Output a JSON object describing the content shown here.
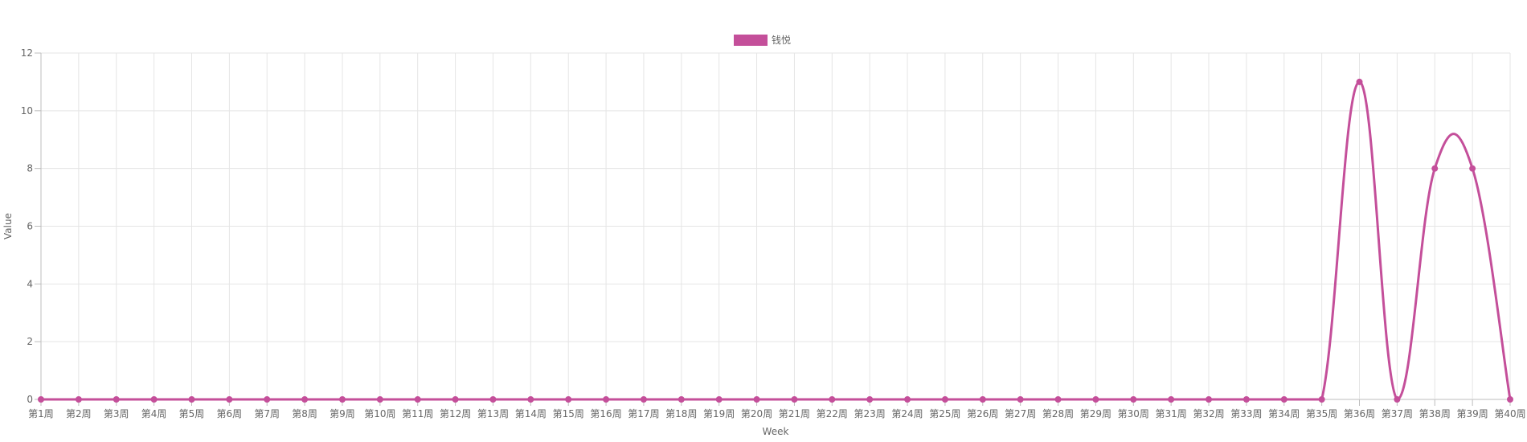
{
  "chart_data": {
    "type": "line",
    "categories": [
      "第1周",
      "第2周",
      "第3周",
      "第4周",
      "第5周",
      "第6周",
      "第7周",
      "第8周",
      "第9周",
      "第10周",
      "第11周",
      "第12周",
      "第13周",
      "第14周",
      "第15周",
      "第16周",
      "第17周",
      "第18周",
      "第19周",
      "第20周",
      "第21周",
      "第22周",
      "第23周",
      "第24周",
      "第25周",
      "第26周",
      "第27周",
      "第28周",
      "第29周",
      "第30周",
      "第31周",
      "第32周",
      "第33周",
      "第34周",
      "第35周",
      "第36周",
      "第37周",
      "第38周",
      "第39周",
      "第40周"
    ],
    "series": [
      {
        "name": "钱悦",
        "color": "#c44f9a",
        "values": [
          0,
          0,
          0,
          0,
          0,
          0,
          0,
          0,
          0,
          0,
          0,
          0,
          0,
          0,
          0,
          0,
          0,
          0,
          0,
          0,
          0,
          0,
          0,
          0,
          0,
          0,
          0,
          0,
          0,
          0,
          0,
          0,
          0,
          0,
          0,
          11,
          0,
          8,
          8,
          0
        ]
      }
    ],
    "xlabel": "Week",
    "ylabel": "Value",
    "ylim": [
      0,
      12
    ],
    "yticks": [
      0,
      2,
      4,
      6,
      8,
      10,
      12
    ],
    "grid": true,
    "legend": "top-center",
    "curve": "smooth"
  }
}
